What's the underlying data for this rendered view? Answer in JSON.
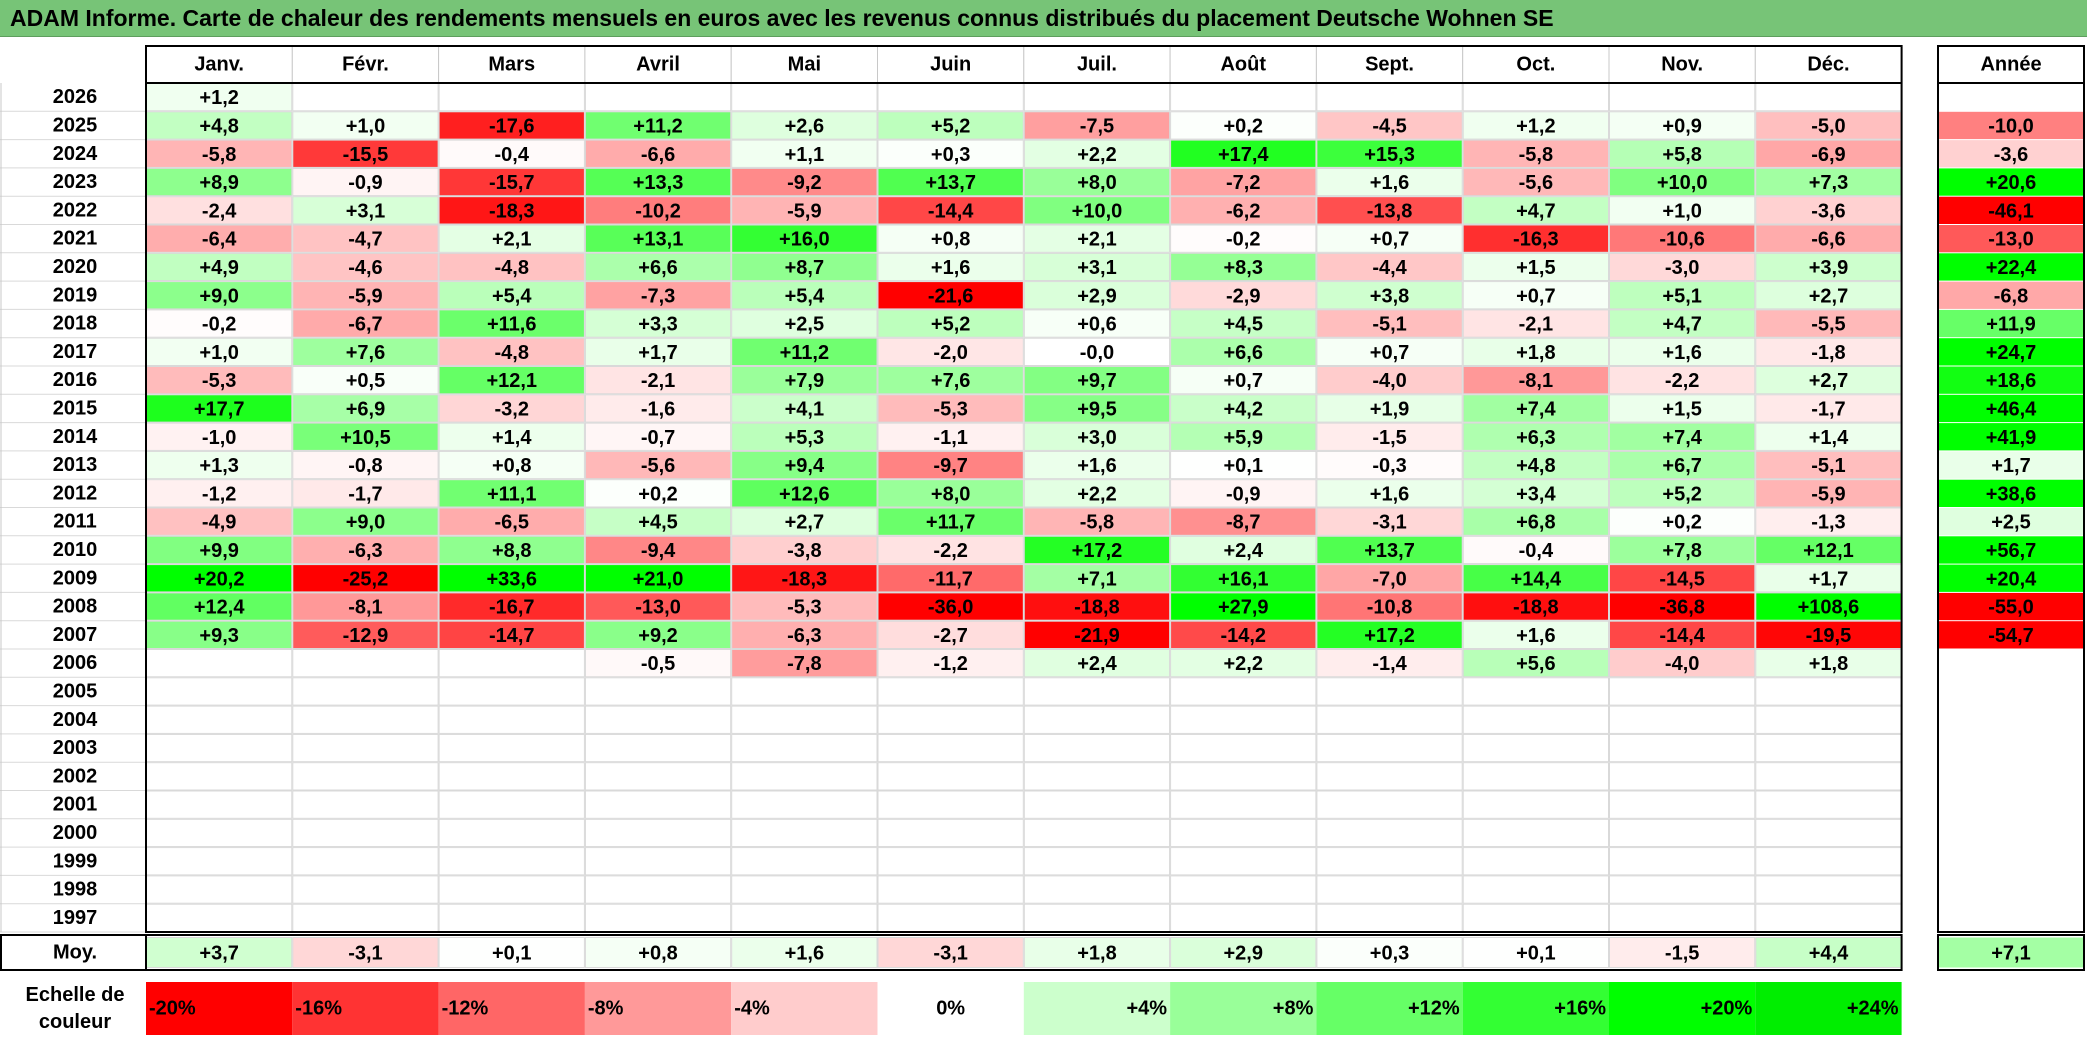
{
  "title": "ADAM Informe. Carte de chaleur des rendements mensuels en euros avec les revenus connus distribués du placement Deutsche Wohnen SE",
  "chart_data": {
    "type": "heatmap",
    "months": [
      "Janv.",
      "Févr.",
      "Mars",
      "Avril",
      "Mai",
      "Juin",
      "Juil.",
      "Août",
      "Sept.",
      "Oct.",
      "Nov.",
      "Déc."
    ],
    "year_header": "Année",
    "years": [
      "2026",
      "2025",
      "2024",
      "2023",
      "2022",
      "2021",
      "2020",
      "2019",
      "2018",
      "2017",
      "2016",
      "2015",
      "2014",
      "2013",
      "2012",
      "2011",
      "2010",
      "2009",
      "2008",
      "2007",
      "2006",
      "2005",
      "2004",
      "2003",
      "2002",
      "2001",
      "2000",
      "1999",
      "1998",
      "1997"
    ],
    "monthly_values": [
      [
        1.2,
        null,
        null,
        null,
        null,
        null,
        null,
        null,
        null,
        null,
        null,
        null
      ],
      [
        4.8,
        1.0,
        -17.6,
        11.2,
        2.6,
        5.2,
        -7.5,
        0.2,
        -4.5,
        1.2,
        0.9,
        -5.0
      ],
      [
        -5.8,
        -15.5,
        -0.4,
        -6.6,
        1.1,
        0.3,
        2.2,
        17.4,
        15.3,
        -5.8,
        5.8,
        -6.9
      ],
      [
        8.9,
        -0.9,
        -15.7,
        13.3,
        -9.2,
        13.7,
        8.0,
        -7.2,
        1.6,
        -5.6,
        10.0,
        7.3
      ],
      [
        -2.4,
        3.1,
        -18.3,
        -10.2,
        -5.9,
        -14.4,
        10.0,
        -6.2,
        -13.8,
        4.7,
        1.0,
        -3.6
      ],
      [
        -6.4,
        -4.7,
        2.1,
        13.1,
        16.0,
        0.8,
        2.1,
        -0.2,
        0.7,
        -16.3,
        -10.6,
        -6.6
      ],
      [
        4.9,
        -4.6,
        -4.8,
        6.6,
        8.7,
        1.6,
        3.1,
        8.3,
        -4.4,
        1.5,
        -3.0,
        3.9
      ],
      [
        9.0,
        -5.9,
        5.4,
        -7.3,
        5.4,
        -21.6,
        2.9,
        -2.9,
        3.8,
        0.7,
        5.1,
        2.7
      ],
      [
        -0.2,
        -6.7,
        11.6,
        3.3,
        2.5,
        5.2,
        0.6,
        4.5,
        -5.1,
        -2.1,
        4.7,
        -5.5
      ],
      [
        1.0,
        7.6,
        -4.8,
        1.7,
        11.2,
        -2.0,
        -0.0,
        6.6,
        0.7,
        1.8,
        1.6,
        -1.8
      ],
      [
        -5.3,
        0.5,
        12.1,
        -2.1,
        7.9,
        7.6,
        9.7,
        0.7,
        -4.0,
        -8.1,
        -2.2,
        2.7
      ],
      [
        17.7,
        6.9,
        -3.2,
        -1.6,
        4.1,
        -5.3,
        9.5,
        4.2,
        1.9,
        7.4,
        1.5,
        -1.7
      ],
      [
        -1.0,
        10.5,
        1.4,
        -0.7,
        5.3,
        -1.1,
        3.0,
        5.9,
        -1.5,
        6.3,
        7.4,
        1.4
      ],
      [
        1.3,
        -0.8,
        0.8,
        -5.6,
        9.4,
        -9.7,
        1.6,
        0.1,
        -0.3,
        4.8,
        6.7,
        -5.1
      ],
      [
        -1.2,
        -1.7,
        11.1,
        0.2,
        12.6,
        8.0,
        2.2,
        -0.9,
        1.6,
        3.4,
        5.2,
        -5.9
      ],
      [
        -4.9,
        9.0,
        -6.5,
        4.5,
        2.7,
        11.7,
        -5.8,
        -8.7,
        -3.1,
        6.8,
        0.2,
        -1.3
      ],
      [
        9.9,
        -6.3,
        8.8,
        -9.4,
        -3.8,
        -2.2,
        17.2,
        2.4,
        13.7,
        -0.4,
        7.8,
        12.1
      ],
      [
        20.2,
        -25.2,
        33.6,
        21.0,
        -18.3,
        -11.7,
        7.1,
        16.1,
        -7.0,
        14.4,
        -14.5,
        1.7
      ],
      [
        12.4,
        -8.1,
        -16.7,
        -13.0,
        -5.3,
        -36.0,
        -18.8,
        27.9,
        -10.8,
        -18.8,
        -36.8,
        108.6
      ],
      [
        9.3,
        -12.9,
        -14.7,
        9.2,
        -6.3,
        -2.7,
        -21.9,
        -14.2,
        17.2,
        1.6,
        -14.4,
        -19.5
      ],
      [
        null,
        null,
        null,
        -0.5,
        -7.8,
        -1.2,
        2.4,
        2.2,
        -1.4,
        5.6,
        -4.0,
        1.8
      ],
      [
        null,
        null,
        null,
        null,
        null,
        null,
        null,
        null,
        null,
        null,
        null,
        null
      ],
      [
        null,
        null,
        null,
        null,
        null,
        null,
        null,
        null,
        null,
        null,
        null,
        null
      ],
      [
        null,
        null,
        null,
        null,
        null,
        null,
        null,
        null,
        null,
        null,
        null,
        null
      ],
      [
        null,
        null,
        null,
        null,
        null,
        null,
        null,
        null,
        null,
        null,
        null,
        null
      ],
      [
        null,
        null,
        null,
        null,
        null,
        null,
        null,
        null,
        null,
        null,
        null,
        null
      ],
      [
        null,
        null,
        null,
        null,
        null,
        null,
        null,
        null,
        null,
        null,
        null,
        null
      ],
      [
        null,
        null,
        null,
        null,
        null,
        null,
        null,
        null,
        null,
        null,
        null,
        null
      ],
      [
        null,
        null,
        null,
        null,
        null,
        null,
        null,
        null,
        null,
        null,
        null,
        null
      ],
      [
        null,
        null,
        null,
        null,
        null,
        null,
        null,
        null,
        null,
        null,
        null,
        null
      ]
    ],
    "annual_values": [
      null,
      -10.0,
      -3.6,
      20.6,
      -46.1,
      -13.0,
      22.4,
      -6.8,
      11.9,
      24.7,
      18.6,
      46.4,
      41.9,
      1.7,
      38.6,
      2.5,
      56.7,
      20.4,
      -55.0,
      -54.7,
      null,
      null,
      null,
      null,
      null,
      null,
      null,
      null,
      null,
      null
    ],
    "average_label": "Moy.",
    "average_values": [
      3.7,
      -3.1,
      0.1,
      0.8,
      1.6,
      -3.1,
      1.8,
      2.9,
      0.3,
      0.1,
      -1.5,
      4.4
    ],
    "average_annual": 7.1,
    "color_scale_label": [
      "Echelle de",
      "couleur"
    ],
    "color_scale": [
      {
        "label": "-20%",
        "value": -20,
        "color": "#ff0000"
      },
      {
        "label": "-16%",
        "value": -16,
        "color": "#ff3333"
      },
      {
        "label": "-12%",
        "value": -12,
        "color": "#ff6666"
      },
      {
        "label": "-8%",
        "value": -8,
        "color": "#ff9999"
      },
      {
        "label": "-4%",
        "value": -4,
        "color": "#ffcccc"
      },
      {
        "label": "0%",
        "value": 0,
        "color": "#ffffff"
      },
      {
        "label": "+4%",
        "value": 4,
        "color": "#ccffcc"
      },
      {
        "label": "+8%",
        "value": 8,
        "color": "#99ff99"
      },
      {
        "label": "+12%",
        "value": 12,
        "color": "#66ff66"
      },
      {
        "label": "+16%",
        "value": 16,
        "color": "#33ff33"
      },
      {
        "label": "+20%",
        "value": 20,
        "color": "#00ff00"
      },
      {
        "label": "+24%",
        "value": 24,
        "color": "#00ee00"
      }
    ]
  }
}
